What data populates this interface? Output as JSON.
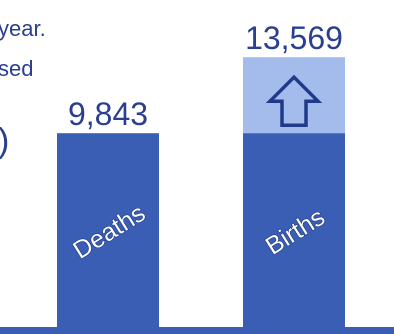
{
  "left_text": {
    "line1": "year.",
    "line2": "sed",
    "line3": ")"
  },
  "colors": {
    "bar": "#3a5eb4",
    "increase": "#a3bcec",
    "text": "#2a3f8f",
    "axis": "#3a5eb4",
    "arrow": "#1f3a8a"
  },
  "chart_data": {
    "type": "bar",
    "categories": [
      "Deaths",
      "Births"
    ],
    "values": [
      9843,
      13569
    ],
    "value_labels": [
      "9,843",
      "13,569"
    ],
    "increase": {
      "from": 9843,
      "to": 13569,
      "icon": "up-arrow-icon"
    },
    "title": "",
    "xlabel": "",
    "ylabel": ""
  }
}
